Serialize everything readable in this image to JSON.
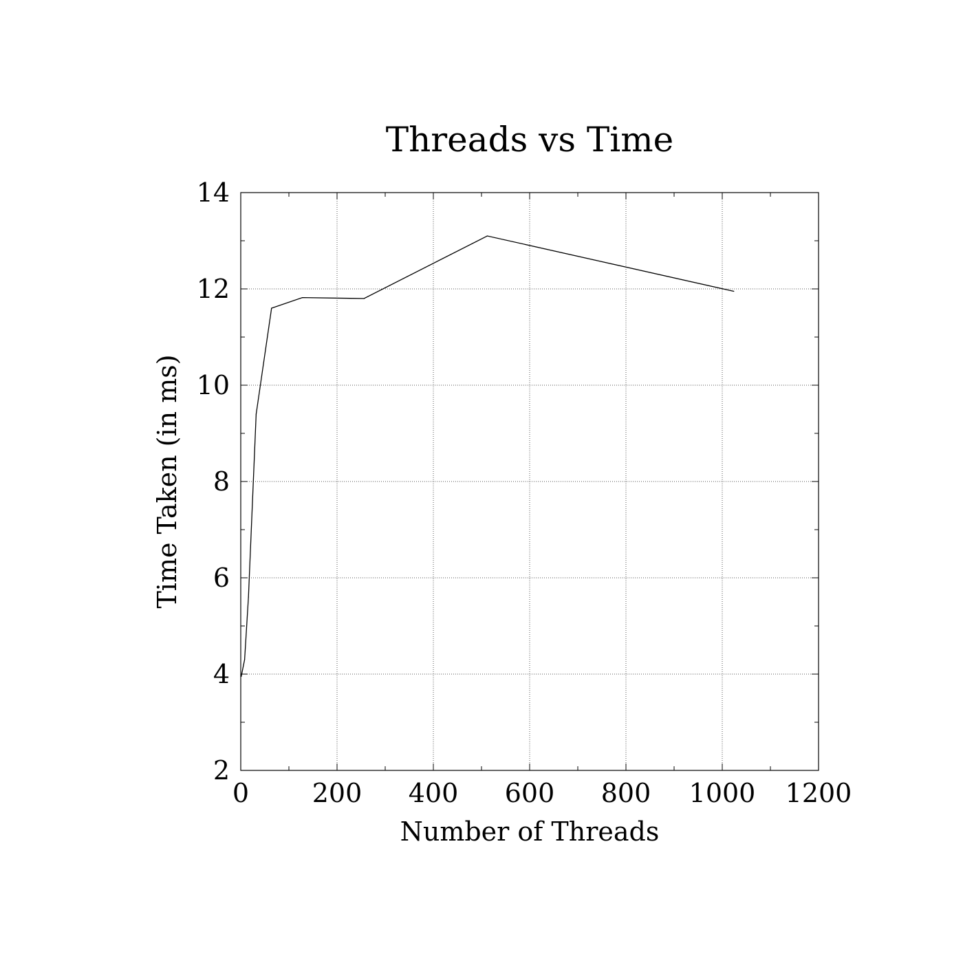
{
  "chart_data": {
    "type": "line",
    "title": "Threads vs Time",
    "xlabel": "Number of Threads",
    "ylabel": "Time Taken (in ms)",
    "xlim": [
      0,
      1200
    ],
    "ylim": [
      2,
      14
    ],
    "xticks": [
      0,
      200,
      400,
      600,
      800,
      1000,
      1200
    ],
    "yticks": [
      2,
      4,
      6,
      8,
      10,
      12,
      14
    ],
    "xtick_labels": [
      "0",
      "200",
      "400",
      "600",
      "800",
      "1000",
      "1200"
    ],
    "ytick_labels": [
      "2",
      "4",
      "6",
      "8",
      "10",
      "12",
      "14"
    ],
    "grid": true,
    "line_color": "#000000",
    "series": [
      {
        "x": [
          1,
          2,
          4,
          8,
          16,
          32,
          64,
          128,
          256,
          512,
          1024
        ],
        "y": [
          3.95,
          4.0,
          4.1,
          4.3,
          5.6,
          9.4,
          11.6,
          11.82,
          11.8,
          13.1,
          11.95
        ]
      }
    ]
  }
}
